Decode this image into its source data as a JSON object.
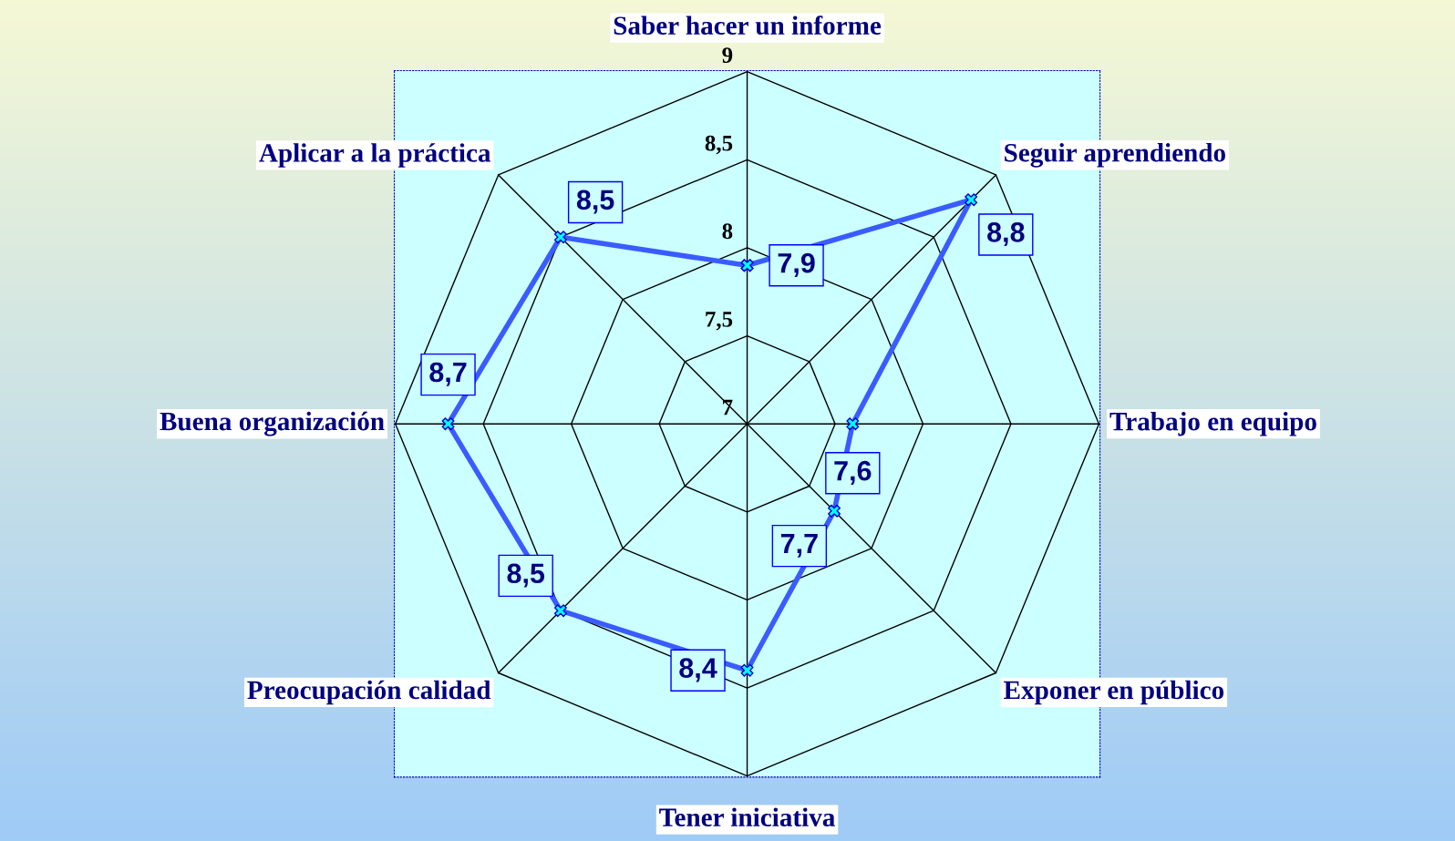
{
  "chart_data": {
    "type": "radar",
    "categories": [
      "Saber hacer un informe",
      "Seguir aprendiendo",
      "Trabajo en equipo",
      "Exponer en público",
      "Tener iniciativa",
      "Preocupación calidad",
      "Buena organización",
      "Aplicar a la práctica"
    ],
    "series": [
      {
        "color": "#3a5cff",
        "values": [
          7.9,
          8.8,
          7.6,
          7.7,
          8.4,
          8.5,
          8.7,
          8.5
        ],
        "value_labels": [
          "7,9",
          "8,8",
          "7,6",
          "7,7",
          "8,4",
          "8,5",
          "8,7",
          "8,5"
        ]
      }
    ],
    "ylim": [
      7,
      9
    ],
    "yticks": [
      7,
      {
        "value": 7.5,
        "label": "7,5"
      },
      8,
      {
        "value": 8.5,
        "label": "8,5"
      },
      9
    ],
    "grid": true,
    "marker": "cross",
    "line_style": "solid"
  }
}
